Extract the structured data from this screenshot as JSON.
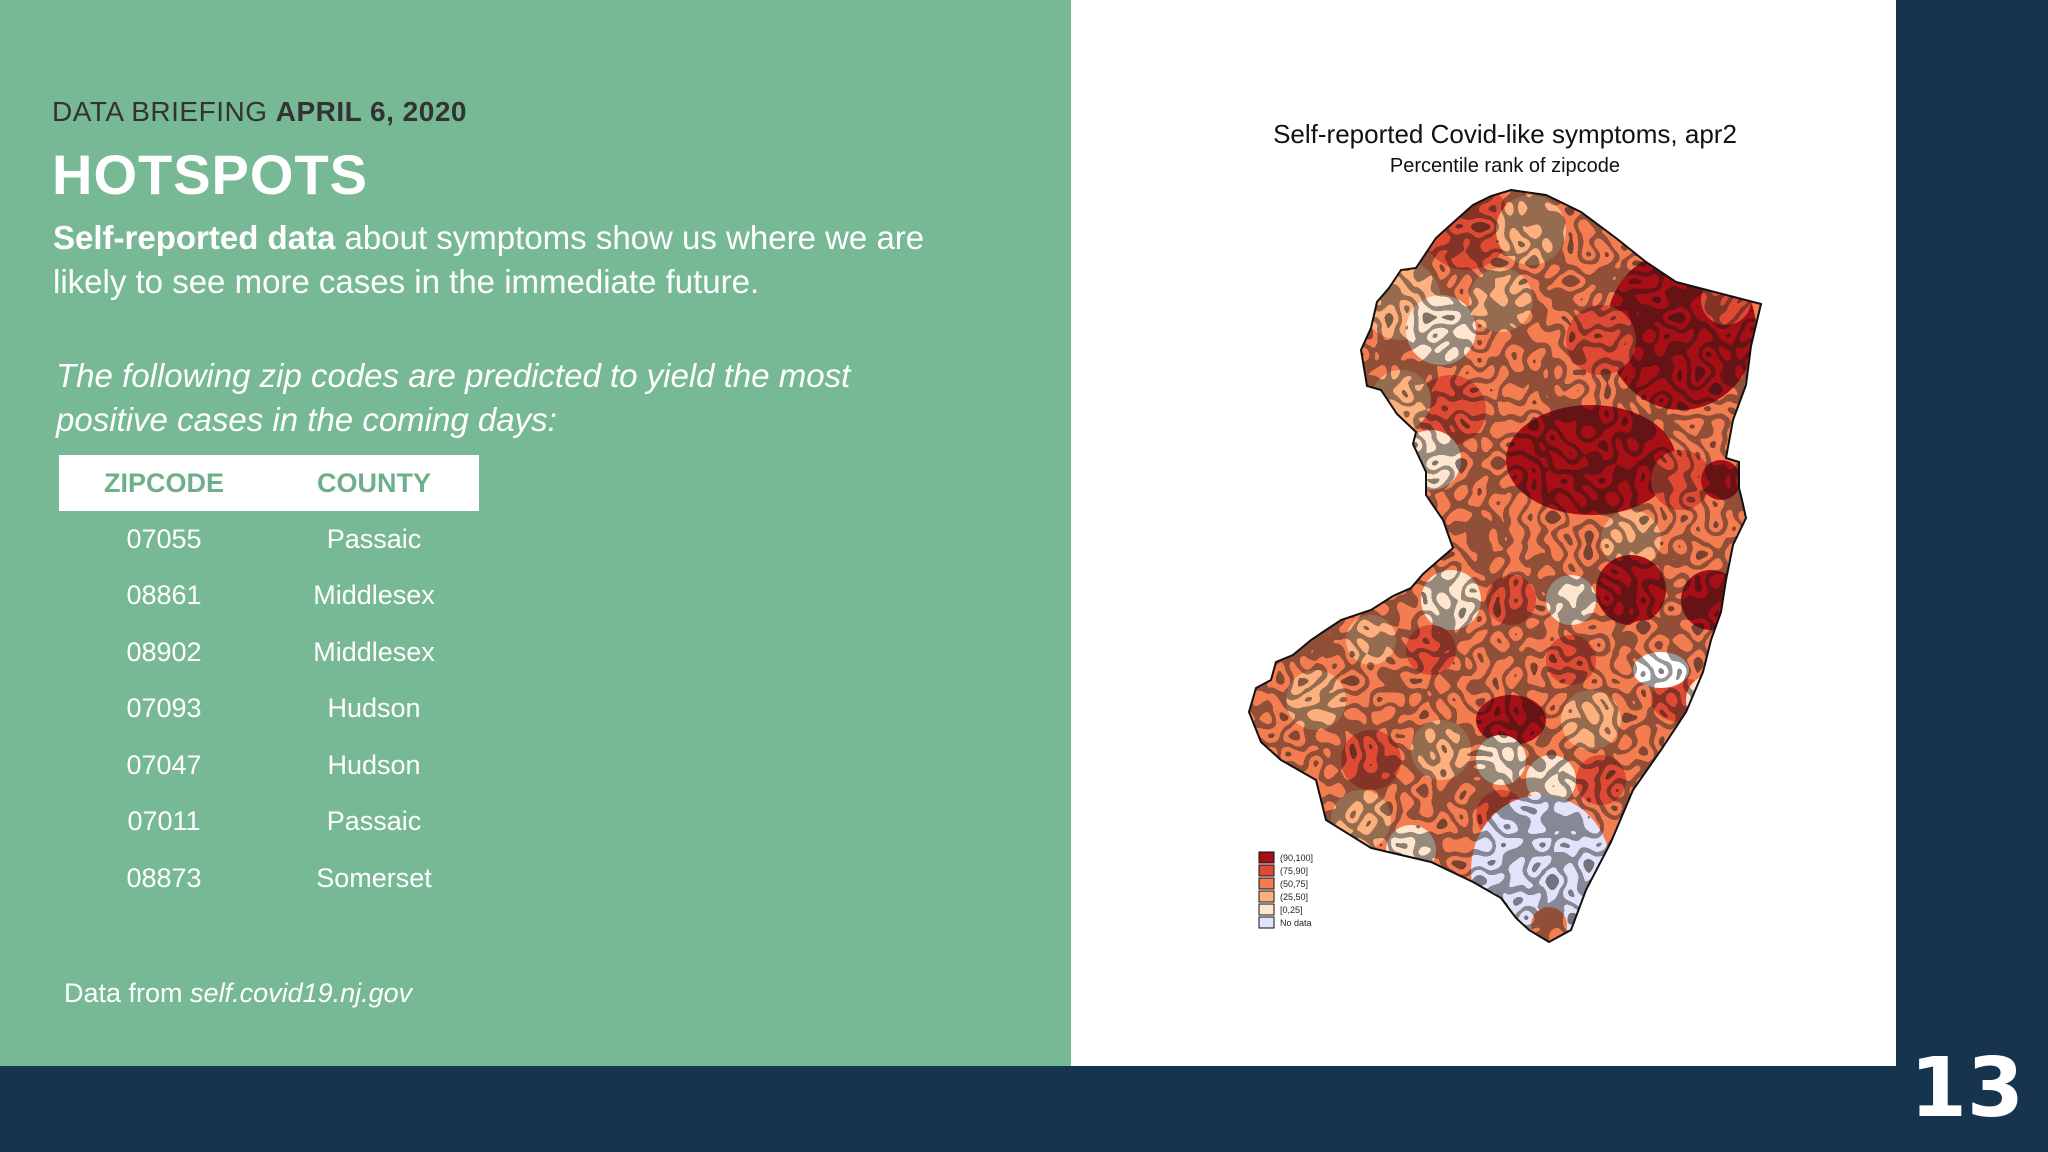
{
  "slide": {
    "briefing_label": "DATA BRIEFING",
    "briefing_date": "APRIL 6, 2020",
    "title": "HOTSPOTS",
    "intro_bold": "Self-reported data",
    "intro_rest": " about symptoms show us where we are likely to see more cases in the immediate future.",
    "note": "The following zip codes are predicted to yield the most positive cases in the coming days:",
    "source_prefix": "Data from ",
    "source_link": "self.covid19.nj.gov",
    "page_number": "13"
  },
  "table": {
    "headers": [
      "ZIPCODE",
      "COUNTY"
    ],
    "rows": [
      [
        "07055",
        "Passaic"
      ],
      [
        "08861",
        "Middlesex"
      ],
      [
        "08902",
        "Middlesex"
      ],
      [
        "07093",
        "Hudson"
      ],
      [
        "07047",
        "Hudson"
      ],
      [
        "07011",
        "Passaic"
      ],
      [
        "08873",
        "Somerset"
      ]
    ]
  },
  "map": {
    "title": "Self-reported Covid-like symptoms, apr2",
    "subtitle": "Percentile rank of zipcode",
    "region": "New Jersey zip codes",
    "legend": [
      {
        "label": "(90,100]",
        "color": "#a50f15"
      },
      {
        "label": "(75,90]",
        "color": "#de4a33"
      },
      {
        "label": "(50,75]",
        "color": "#f37c50"
      },
      {
        "label": "(25,50]",
        "color": "#fdb07e"
      },
      {
        "label": "[0,25]",
        "color": "#fee6ce"
      },
      {
        "label": "No data",
        "color": "#e2e3fb"
      }
    ]
  },
  "colors": {
    "green_panel": "#77b995",
    "navy": "#17344f",
    "header_text": "#6fae8b"
  }
}
